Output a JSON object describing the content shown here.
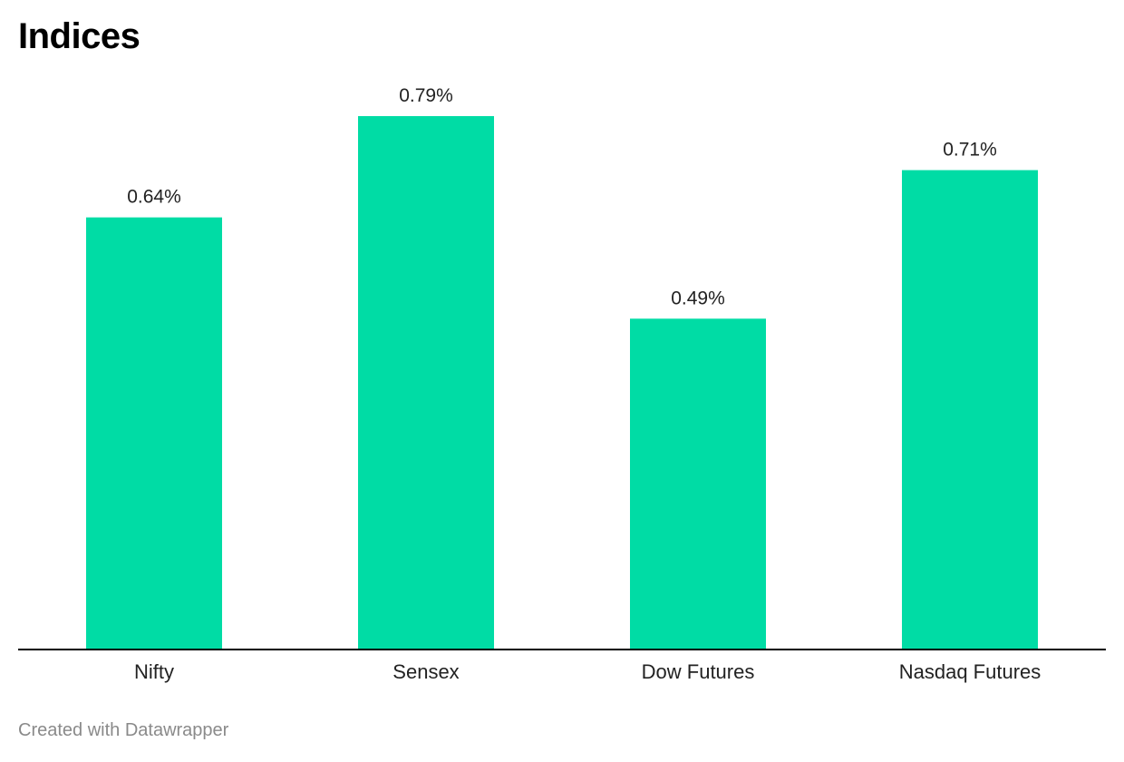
{
  "chart_data": {
    "type": "bar",
    "title": "Indices",
    "categories": [
      "Nifty",
      "Sensex",
      "Dow Futures",
      "Nasdaq Futures"
    ],
    "values": [
      0.64,
      0.79,
      0.49,
      0.71
    ],
    "value_labels": [
      "0.64%",
      "0.79%",
      "0.49%",
      "0.71%"
    ],
    "ylim": [
      0,
      0.79
    ],
    "grid": false,
    "legend": "none",
    "bar_color": "#00dca5",
    "baseline_color": "#000000"
  },
  "footer": {
    "credit": "Created with Datawrapper"
  }
}
